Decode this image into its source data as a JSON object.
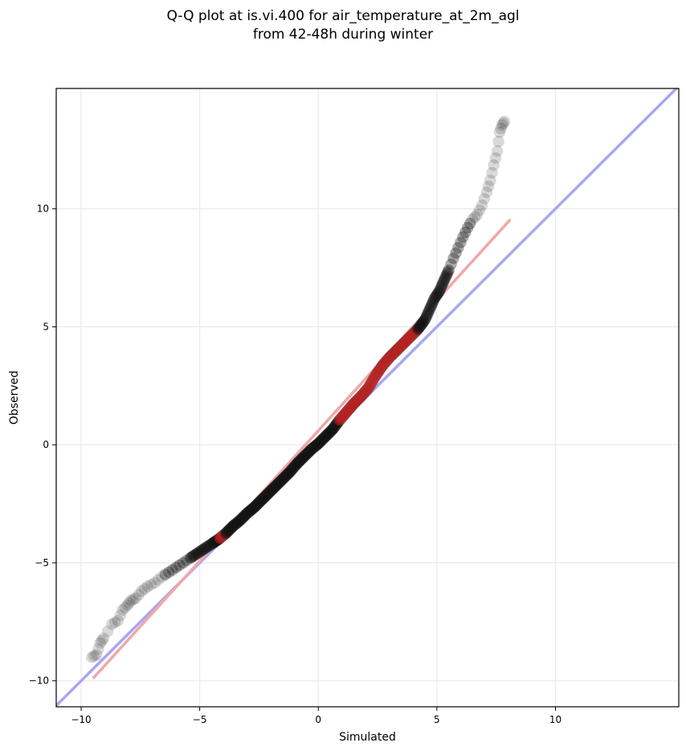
{
  "chart_data": {
    "type": "scatter",
    "title_lines": [
      "Q-Q plot at is.vi.400 for air_temperature_at_2m_agl",
      "from 42-48h during winter"
    ],
    "xlabel": "Simulated",
    "ylabel": "Observed",
    "xlim": [
      -11.05,
      15.2
    ],
    "ylim": [
      -11.1,
      15.1
    ],
    "xticks": [
      -10,
      -5,
      0,
      5,
      10
    ],
    "yticks": [
      -10,
      -5,
      0,
      5,
      10
    ],
    "xtick_labels": [
      "−10",
      "−5",
      "0",
      "5",
      "10"
    ],
    "ytick_labels": [
      "−10",
      "−5",
      "0",
      "5",
      "10"
    ],
    "grid": true,
    "colors": {
      "points_center": "#111111",
      "points_tail": "#8c8c8c",
      "identity_line": "#a7a7f2",
      "fit_line": "#f2a7a7",
      "center_blue": "#1f1fbf",
      "center_red": "#c02020",
      "grid": "#ececec"
    },
    "identity_line": {
      "x": [
        -11.05,
        15.2
      ],
      "y": [
        -11.05,
        15.2
      ]
    },
    "fit_line": {
      "x": [
        -9.5,
        8.1
      ],
      "y": [
        -9.9,
        9.55
      ]
    },
    "quantiles": {
      "x": [
        -9.55,
        -9.35,
        -9.2,
        -9.05,
        -8.7,
        -8.45,
        -8.25,
        -8.05,
        -7.9,
        -7.7,
        -7.45,
        -7.2,
        -6.9,
        -6.6,
        -6.3,
        -6.0,
        -5.7,
        -5.4,
        -5.1,
        -4.8,
        -4.5,
        -4.2,
        -3.9,
        -3.6,
        -3.3,
        -3.0,
        -2.7,
        -2.4,
        -2.1,
        -1.8,
        -1.5,
        -1.2,
        -0.9,
        -0.6,
        -0.3,
        0.0,
        0.3,
        0.6,
        0.9,
        1.2,
        1.5,
        1.8,
        2.1,
        2.4,
        2.7,
        3.0,
        3.3,
        3.6,
        3.9,
        4.2,
        4.5,
        4.7,
        4.9,
        5.1,
        5.3,
        5.5,
        5.7,
        5.9,
        6.1,
        6.3,
        6.5,
        6.7,
        6.9,
        7.1,
        7.25,
        7.4,
        7.55,
        7.65,
        7.75,
        7.85
      ],
      "y": [
        -9.0,
        -8.9,
        -8.4,
        -8.2,
        -7.6,
        -7.45,
        -7.0,
        -6.8,
        -6.6,
        -6.5,
        -6.2,
        -6.0,
        -5.85,
        -5.6,
        -5.4,
        -5.2,
        -5.0,
        -4.8,
        -4.6,
        -4.4,
        -4.2,
        -4.0,
        -3.75,
        -3.45,
        -3.2,
        -2.9,
        -2.65,
        -2.35,
        -2.05,
        -1.75,
        -1.45,
        -1.15,
        -0.8,
        -0.5,
        -0.2,
        0.05,
        0.35,
        0.65,
        1.05,
        1.4,
        1.75,
        2.05,
        2.4,
        2.9,
        3.35,
        3.7,
        4.0,
        4.3,
        4.6,
        4.9,
        5.3,
        5.75,
        6.2,
        6.5,
        6.95,
        7.4,
        7.9,
        8.35,
        8.8,
        9.2,
        9.55,
        9.75,
        10.15,
        10.7,
        11.2,
        11.85,
        12.45,
        13.25,
        13.55,
        13.7
      ]
    }
  }
}
